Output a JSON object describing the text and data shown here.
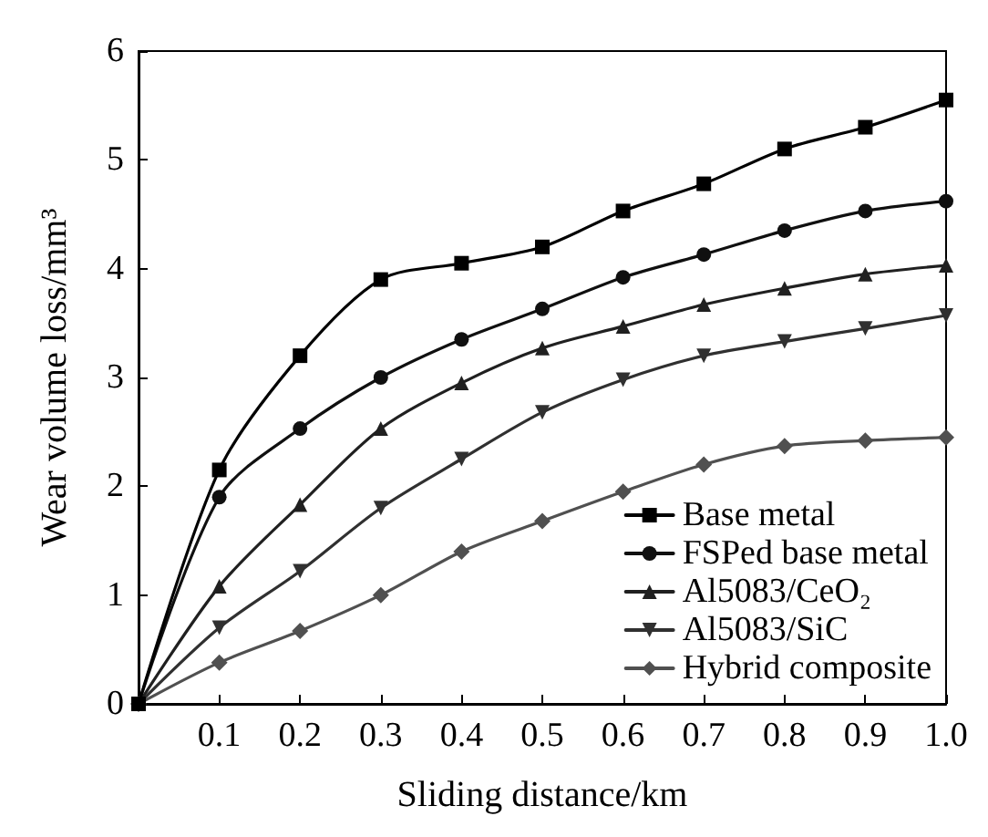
{
  "chart_data": {
    "type": "line",
    "xlabel": "Sliding distance/km",
    "ylabel": "Wear volume loss/mm³",
    "x": [
      0,
      0.1,
      0.2,
      0.3,
      0.4,
      0.5,
      0.6,
      0.7,
      0.8,
      0.9,
      1.0
    ],
    "series": [
      {
        "name": "Base metal",
        "color": "#000000",
        "marker": "square",
        "values": [
          0,
          2.15,
          3.2,
          3.9,
          4.05,
          4.2,
          4.53,
          4.78,
          5.1,
          5.3,
          5.55
        ]
      },
      {
        "name": "FSPed base metal",
        "color": "#101010",
        "marker": "circle",
        "values": [
          0,
          1.9,
          2.53,
          3.0,
          3.35,
          3.63,
          3.92,
          4.13,
          4.35,
          4.53,
          4.62
        ]
      },
      {
        "name": "Al5083/CeO₂",
        "color": "#202020",
        "marker": "triangle",
        "values": [
          0,
          1.08,
          1.83,
          2.53,
          2.95,
          3.27,
          3.47,
          3.67,
          3.82,
          3.95,
          4.03
        ]
      },
      {
        "name": "Al5083/SiC",
        "color": "#303030",
        "marker": "triangle-down",
        "values": [
          0,
          0.7,
          1.22,
          1.8,
          2.25,
          2.68,
          2.98,
          3.2,
          3.33,
          3.45,
          3.57
        ]
      },
      {
        "name": "Hybrid composite",
        "color": "#505050",
        "marker": "diamond",
        "values": [
          0,
          0.38,
          0.67,
          1.0,
          1.4,
          1.68,
          1.95,
          2.2,
          2.37,
          2.42,
          2.45
        ]
      }
    ],
    "xlim": [
      0,
      1.0
    ],
    "xticks": [
      {
        "value": 0,
        "label": null
      },
      0.1,
      0.2,
      0.3,
      0.4,
      0.5,
      0.6,
      0.7,
      0.8,
      0.9,
      {
        "value": 1.0,
        "label": "1.0"
      }
    ],
    "ylim": [
      0,
      6
    ],
    "yticks": [
      0,
      1,
      2,
      3,
      4,
      5,
      6
    ],
    "grid": false,
    "legend": "bottom right",
    "line_style": "solid"
  }
}
